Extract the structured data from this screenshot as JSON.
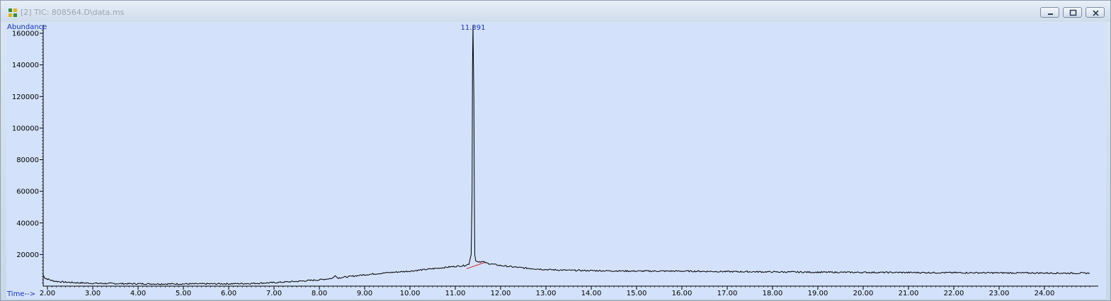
{
  "window": {
    "title": "[2] TIC: 808564.D\\data.ms"
  },
  "chart_data": {
    "type": "line",
    "title": "",
    "xlabel": "Time-->",
    "ylabel": "Abundance",
    "xlim": [
      1.9,
      25.0
    ],
    "ylim": [
      0,
      165000
    ],
    "x_ticks": [
      "2.00",
      "3.00",
      "4.00",
      "5.00",
      "6.00",
      "7.00",
      "8.00",
      "9.00",
      "10.00",
      "11.00",
      "12.00",
      "13.00",
      "14.00",
      "15.00",
      "16.00",
      "17.00",
      "18.00",
      "19.00",
      "20.00",
      "21.00",
      "22.00",
      "23.00",
      "24.00"
    ],
    "y_ticks": [
      "20000",
      "40000",
      "60000",
      "80000",
      "100000",
      "120000",
      "140000",
      "160000"
    ],
    "grid": false,
    "annotations": [
      {
        "text": "11.391",
        "x": 11.391,
        "y": 165000
      }
    ],
    "baseline_segment": {
      "x": [
        11.25,
        11.65
      ],
      "y": [
        11000,
        15000
      ]
    },
    "series": [
      {
        "x": [
          1.9,
          1.95,
          2.0,
          2.1,
          2.2,
          2.4,
          2.6,
          3.0,
          3.5,
          4.0,
          4.5,
          5.0,
          5.5,
          6.0,
          6.5,
          7.0,
          7.5,
          8.0,
          8.3,
          8.35,
          8.4,
          8.5,
          9.0,
          9.5,
          10.0,
          10.5,
          11.0,
          11.2,
          11.3,
          11.35,
          11.37,
          11.38,
          11.39,
          11.4,
          11.41,
          11.42,
          11.43,
          11.45,
          11.5,
          11.6,
          11.7,
          12.0,
          12.5,
          13.0,
          13.5,
          14.0,
          15.0,
          16.0,
          17.0,
          18.0,
          19.0,
          20.0,
          21.0,
          22.0,
          23.0,
          24.0,
          24.5,
          25.0
        ],
        "y": [
          7000,
          5000,
          4500,
          3500,
          3000,
          2500,
          2200,
          1800,
          1600,
          1500,
          1400,
          1400,
          1450,
          1500,
          1700,
          2200,
          3000,
          4000,
          5000,
          7000,
          5200,
          5500,
          7200,
          8500,
          9500,
          11000,
          12500,
          13000,
          14000,
          20000,
          60000,
          140000,
          165000,
          142000,
          120000,
          55000,
          20000,
          16000,
          15500,
          15500,
          14500,
          13000,
          11500,
          10500,
          10000,
          9800,
          9500,
          9500,
          9200,
          9000,
          8800,
          8700,
          8600,
          8500,
          8400,
          8300,
          8200,
          8200
        ]
      }
    ]
  }
}
